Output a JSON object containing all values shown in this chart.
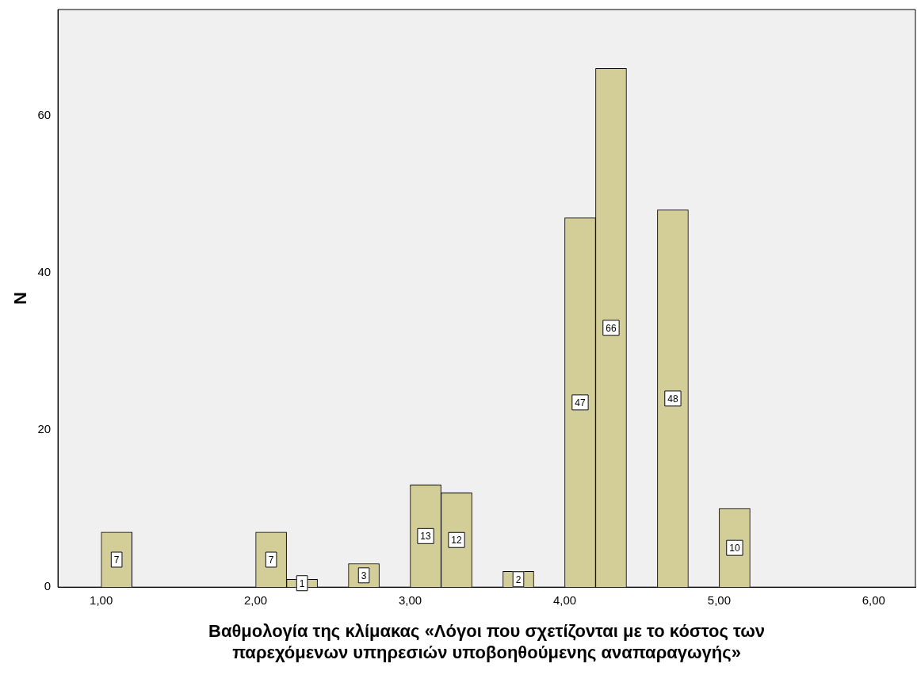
{
  "chart_data": {
    "type": "histogram",
    "xlabel": "Βαθμολογία της κλίμακας «Λόγοι που σχετίζονται με το κόστος των\nπαρεχόμενων υπηρεσιών υποβοηθούμενης αναπαραγωγής»",
    "ylabel": "N",
    "bins": [
      1.0,
      1.2,
      1.4,
      1.6,
      1.8,
      2.0,
      2.2,
      2.4,
      2.6,
      2.8,
      3.0,
      3.2,
      3.4,
      3.6,
      3.8,
      4.0,
      4.2,
      4.4,
      4.6,
      4.8,
      5.0,
      5.2
    ],
    "values": [
      7,
      0,
      0,
      0,
      0,
      7,
      1,
      0,
      3,
      0,
      13,
      12,
      0,
      2,
      0,
      47,
      66,
      0,
      48,
      0,
      10
    ],
    "value_labels": [
      "7",
      null,
      null,
      null,
      null,
      "7",
      "1",
      null,
      "3",
      null,
      "13",
      "12",
      null,
      "2",
      null,
      "47",
      "66",
      null,
      "48",
      null,
      "10"
    ],
    "color": "#d3ce97",
    "xlim": [
      0.72,
      6.27
    ],
    "xticks": [
      {
        "value": 1,
        "label": "1,00"
      },
      {
        "value": 2,
        "label": "2,00"
      },
      {
        "value": 3,
        "label": "3,00"
      },
      {
        "value": 4,
        "label": "4,00"
      },
      {
        "value": 5,
        "label": "5,00"
      },
      {
        "value": 6,
        "label": "6,00"
      }
    ],
    "ylim": [
      0,
      73.5
    ],
    "yticks": [
      0,
      20,
      40,
      60
    ],
    "grid": false,
    "legend": false
  }
}
